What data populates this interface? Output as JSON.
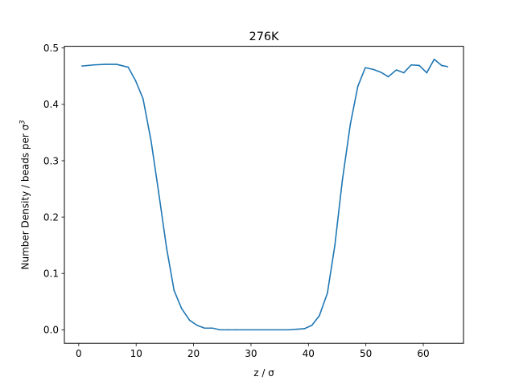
{
  "chart_data": {
    "type": "line",
    "title": "276K",
    "xlabel": "z / σ",
    "ylabel_main": "Number Density / beads per σ",
    "ylabel_sup": "3",
    "xlim": [
      -2.5,
      67
    ],
    "ylim": [
      -0.024,
      0.503
    ],
    "xticks": [
      0,
      10,
      20,
      30,
      40,
      50,
      60
    ],
    "yticks": [
      0.0,
      0.1,
      0.2,
      0.3,
      0.4,
      0.5
    ],
    "ytick_labels": [
      "0.0",
      "0.1",
      "0.2",
      "0.3",
      "0.4",
      "0.5"
    ],
    "grid": false,
    "series": [
      {
        "color": "#1f77b4",
        "x": [
          0.6,
          2.6,
          4.6,
          6.6,
          8.6,
          9.9,
          11.2,
          12.6,
          13.9,
          15.3,
          16.6,
          17.9,
          19.3,
          20.6,
          21.9,
          23.3,
          24.6,
          25.9,
          27.3,
          28.6,
          29.9,
          31.3,
          32.6,
          33.9,
          35.3,
          36.6,
          37.9,
          39.3,
          40.6,
          41.9,
          43.3,
          44.6,
          45.9,
          47.3,
          48.6,
          49.9,
          51.3,
          52.6,
          53.9,
          55.3,
          56.6,
          57.9,
          59.3,
          60.6,
          61.9,
          63.2,
          64.2
        ],
        "y": [
          0.468,
          0.47,
          0.471,
          0.471,
          0.466,
          0.442,
          0.41,
          0.335,
          0.245,
          0.145,
          0.07,
          0.038,
          0.017,
          0.008,
          0.003,
          0.003,
          0.0,
          0.0,
          0.0,
          0.0,
          0.0,
          0.0,
          0.0,
          0.0,
          0.0,
          0.0,
          0.001,
          0.002,
          0.008,
          0.025,
          0.065,
          0.15,
          0.265,
          0.365,
          0.432,
          0.465,
          0.462,
          0.457,
          0.449,
          0.461,
          0.456,
          0.47,
          0.469,
          0.456,
          0.48,
          0.469,
          0.467
        ]
      }
    ]
  }
}
